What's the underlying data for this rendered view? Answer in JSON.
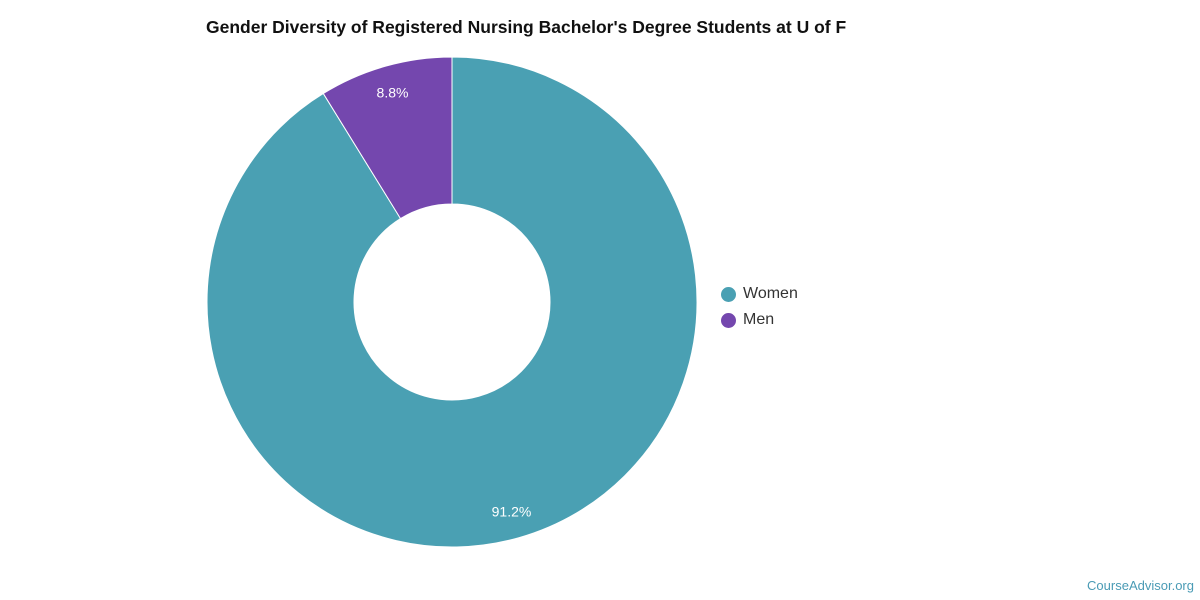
{
  "title": "Gender Diversity of Registered Nursing Bachelor's Degree Students at U of F",
  "watermark": "CourseAdvisor.org",
  "chart_data": {
    "type": "pie",
    "variant": "donut",
    "title": "Gender Diversity of Registered Nursing Bachelor's Degree Students at U of F",
    "categories": [
      "Women",
      "Men"
    ],
    "values": [
      91.2,
      8.8
    ],
    "labels": [
      "91.2%",
      "8.8%"
    ],
    "colors": [
      "#4aa0b3",
      "#7447ae"
    ],
    "legend": "right"
  }
}
